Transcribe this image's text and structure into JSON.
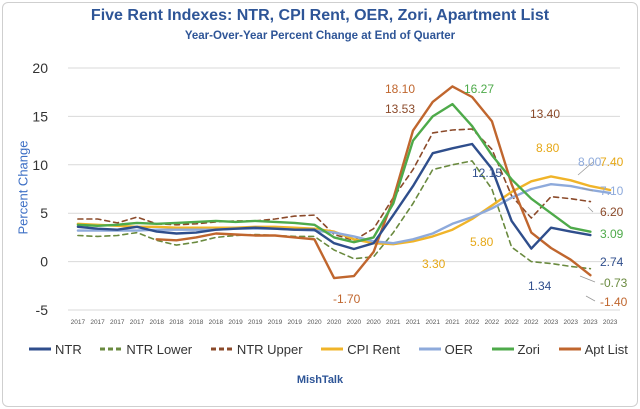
{
  "chart_data": {
    "type": "line",
    "title": "Five Rent Indexes: NTR, CPI Rent, OER, Zori, Apartment List",
    "subtitle": "Year-Over-Year Percent Change at End of Quarter",
    "xlabel": "",
    "ylabel": "Percent Change",
    "source": "MishTalk",
    "ylim": [
      -5,
      20
    ],
    "yticks": [
      -5,
      0,
      5,
      10,
      15,
      20
    ],
    "categories": [
      "2017",
      "2017",
      "2017",
      "2017",
      "2018",
      "2018",
      "2018",
      "2018",
      "2019",
      "2019",
      "2019",
      "2019",
      "2020",
      "2020",
      "2020",
      "2020",
      "2021",
      "2021",
      "2021",
      "2021",
      "2022",
      "2022",
      "2022",
      "2022",
      "2023",
      "2023",
      "2023",
      "2023"
    ],
    "series": [
      {
        "name": "NTR",
        "color": "#2f4e8c",
        "dash": "solid",
        "values": [
          3.6,
          3.4,
          3.3,
          3.6,
          3.1,
          2.9,
          3.0,
          3.3,
          3.4,
          3.5,
          3.4,
          3.3,
          3.3,
          1.9,
          1.3,
          1.9,
          4.8,
          7.8,
          11.2,
          11.7,
          12.15,
          9.6,
          4.2,
          1.34,
          3.5,
          3.1,
          2.74,
          null
        ]
      },
      {
        "name": "NTR Lower",
        "color": "#6a8a3f",
        "dash": "dash",
        "values": [
          2.7,
          2.6,
          2.7,
          3.0,
          2.2,
          1.7,
          2.0,
          2.5,
          2.7,
          2.8,
          2.7,
          2.6,
          2.6,
          1.2,
          0.3,
          0.5,
          3.0,
          6.0,
          9.5,
          10.0,
          10.4,
          7.5,
          1.5,
          0.0,
          -0.2,
          -0.5,
          -0.73,
          null
        ]
      },
      {
        "name": "NTR Upper",
        "color": "#8b4a2a",
        "dash": "dash",
        "values": [
          4.4,
          4.4,
          4.0,
          4.6,
          3.9,
          3.8,
          3.9,
          4.1,
          4.2,
          4.2,
          4.4,
          4.7,
          4.8,
          2.8,
          2.2,
          3.4,
          6.6,
          9.5,
          13.3,
          13.6,
          13.7,
          11.6,
          6.8,
          4.5,
          6.7,
          6.5,
          6.2,
          null
        ]
      },
      {
        "name": "CPI Rent",
        "color": "#f0b429",
        "dash": "solid",
        "values": [
          3.9,
          3.8,
          3.7,
          3.6,
          3.6,
          3.5,
          3.5,
          3.5,
          3.5,
          3.6,
          3.6,
          3.5,
          3.4,
          3.1,
          2.3,
          1.9,
          1.8,
          2.1,
          2.6,
          3.3,
          4.4,
          5.8,
          7.2,
          8.3,
          8.8,
          8.4,
          7.8,
          7.4
        ]
      },
      {
        "name": "OER",
        "color": "#8eaadb",
        "dash": "solid",
        "values": [
          3.2,
          3.2,
          3.2,
          3.2,
          3.3,
          3.3,
          3.3,
          3.3,
          3.4,
          3.4,
          3.4,
          3.3,
          3.2,
          3.0,
          2.6,
          2.1,
          1.9,
          2.3,
          2.9,
          3.9,
          4.6,
          5.5,
          6.6,
          7.5,
          8.0,
          7.8,
          7.4,
          7.1
        ]
      },
      {
        "name": "Zori",
        "color": "#4eaa4a",
        "dash": "solid",
        "values": [
          3.8,
          3.7,
          3.8,
          4.0,
          3.9,
          4.0,
          4.1,
          4.2,
          4.1,
          4.2,
          4.1,
          4.0,
          3.8,
          2.5,
          2.0,
          2.5,
          6.0,
          12.5,
          15.0,
          16.27,
          14.0,
          11.0,
          8.5,
          6.5,
          5.0,
          3.5,
          3.09,
          null
        ]
      },
      {
        "name": "Apt List",
        "color": "#c0662e",
        "dash": "solid",
        "values": [
          null,
          null,
          null,
          null,
          2.3,
          2.2,
          2.5,
          2.9,
          2.8,
          2.7,
          2.7,
          2.5,
          2.3,
          -1.7,
          -1.5,
          1.0,
          6.5,
          13.53,
          16.5,
          18.1,
          17.0,
          14.5,
          8.0,
          3.0,
          1.4,
          0.2,
          -1.4,
          null
        ]
      }
    ],
    "data_labels": [
      {
        "text": "18.10",
        "color": "#c0662e"
      },
      {
        "text": "16.27",
        "color": "#4eaa4a"
      },
      {
        "text": "13.53",
        "color": "#8b4a2a"
      },
      {
        "text": "13.40",
        "color": "#8b4a2a"
      },
      {
        "text": "12.15",
        "color": "#2f4e8c"
      },
      {
        "text": "8.80",
        "color": "#e6a817"
      },
      {
        "text": "8.00",
        "color": "#8eaadb"
      },
      {
        "text": "7.40",
        "color": "#e6a817"
      },
      {
        "text": "7.10",
        "color": "#8eaadb"
      },
      {
        "text": "6.20",
        "color": "#8b4a2a"
      },
      {
        "text": "5.80",
        "color": "#e6a817"
      },
      {
        "text": "3.30",
        "color": "#e6a817"
      },
      {
        "text": "3.09",
        "color": "#4eaa4a"
      },
      {
        "text": "2.74",
        "color": "#2f4e8c"
      },
      {
        "text": "1.34",
        "color": "#2f4e8c"
      },
      {
        "text": "-0.73",
        "color": "#6a8a3f"
      },
      {
        "text": "-1.40",
        "color": "#c0662e"
      },
      {
        "text": "-1.70",
        "color": "#c0662e"
      }
    ]
  }
}
